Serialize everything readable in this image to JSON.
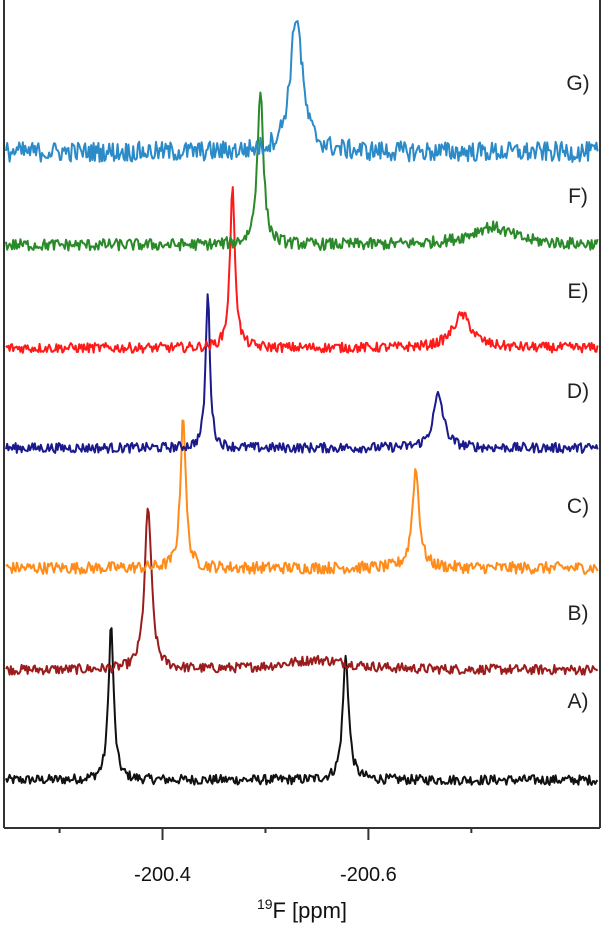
{
  "chart_data": {
    "type": "line",
    "title": "",
    "xlabel": "[ppm]",
    "xlabel_isotope": "19",
    "xlabel_nucleus": "F",
    "ylabel": "",
    "xlim": [
      -200.246,
      -200.825
    ],
    "x_reversed": true,
    "x_major_ticks": [
      -200.4,
      -200.6
    ],
    "x_major_tick_labels": [
      "-200.4",
      "-200.6"
    ],
    "x_minor_ticks": [
      -200.3,
      -200.5,
      -200.7
    ],
    "grid": false,
    "legend": "none",
    "y_units": "arbitrary (stacked offsets)",
    "series": [
      {
        "name": "A)",
        "color": "#111111",
        "offset": 0.0,
        "noise": 0.05,
        "peaks": [
          {
            "ppm": -200.35,
            "height": 1.55,
            "width": 0.006
          },
          {
            "ppm": -200.578,
            "height": 1.23,
            "width": 0.007
          }
        ]
      },
      {
        "name": "B)",
        "color": "#9b1c1c",
        "offset": 1.1,
        "noise": 0.05,
        "peaks": [
          {
            "ppm": -200.386,
            "height": 1.62,
            "width": 0.008
          },
          {
            "ppm": -200.55,
            "height": 0.1,
            "width": 0.08
          }
        ]
      },
      {
        "name": "C)",
        "color": "#ff8c1a",
        "offset": 2.12,
        "noise": 0.06,
        "peaks": [
          {
            "ppm": -200.42,
            "height": 1.55,
            "width": 0.006
          },
          {
            "ppm": -200.646,
            "height": 0.99,
            "width": 0.008
          }
        ]
      },
      {
        "name": "D)",
        "color": "#1a1a8c",
        "offset": 3.32,
        "noise": 0.05,
        "peaks": [
          {
            "ppm": -200.444,
            "height": 1.55,
            "width": 0.005
          },
          {
            "ppm": -200.668,
            "height": 0.53,
            "width": 0.012
          }
        ]
      },
      {
        "name": "E)",
        "color": "#ff1a1a",
        "offset": 4.32,
        "noise": 0.05,
        "peaks": [
          {
            "ppm": -200.468,
            "height": 1.58,
            "width": 0.006
          },
          {
            "ppm": -200.691,
            "height": 0.33,
            "width": 0.022
          }
        ]
      },
      {
        "name": "F)",
        "color": "#2a8a2a",
        "offset": 5.35,
        "noise": 0.06,
        "peaks": [
          {
            "ppm": -200.495,
            "height": 1.55,
            "width": 0.007
          },
          {
            "ppm": -200.719,
            "height": 0.18,
            "width": 0.05
          }
        ]
      },
      {
        "name": "G)",
        "color": "#2b8ac8",
        "offset": 6.28,
        "noise": 0.1,
        "peaks": [
          {
            "ppm": -200.53,
            "height": 1.37,
            "width": 0.014
          }
        ]
      }
    ]
  }
}
